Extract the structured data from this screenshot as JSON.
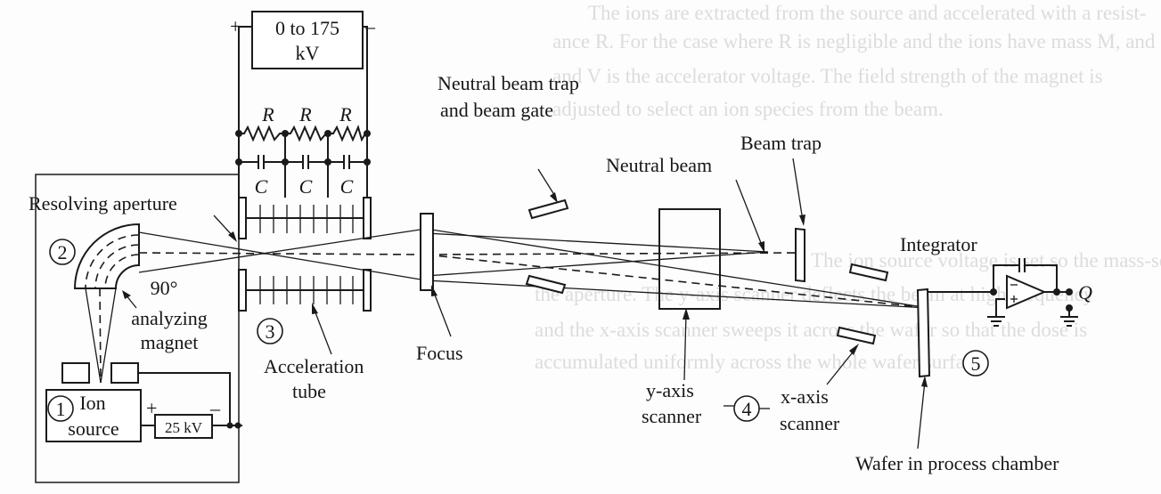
{
  "labels": {
    "supply_plus": "+",
    "supply_minus": "–",
    "supply_top": "0 to 175",
    "supply_bottom": "kV",
    "resistor": "R",
    "capacitor": "C",
    "resolving_aperture": "Resolving aperture",
    "neutral_trap_line1": "Neutral beam trap",
    "neutral_trap_line2": "and beam gate",
    "beam_trap": "Beam trap",
    "neutral_beam": "Neutral beam",
    "integrator": "Integrator",
    "q": "Q",
    "magnet_angle": "90°",
    "magnet_line1": "analyzing",
    "magnet_line2": "magnet",
    "accel_line1": "Acceleration",
    "accel_line2": "tube",
    "focus": "Focus",
    "y_scanner_line1": "y-axis",
    "y_scanner_line2": "scanner",
    "x_scanner_line1": "x-axis",
    "x_scanner_line2": "scanner",
    "wafer": "Wafer in process chamber",
    "ion_line1": "Ion",
    "ion_line2": "source",
    "ion_plus": "+",
    "ion_minus": "–",
    "ion_supply": "25 kV",
    "num1": "1",
    "num2": "2",
    "num3": "3",
    "num4": "4",
    "num5": "5"
  },
  "background_text": {
    "line1": "The ions are extracted from the source and accelerated with a resist-",
    "line2": "ance R. For the case where R is negligible and the ions have mass M, and",
    "line3": "and V is the accelerator voltage. The field strength of the magnet is",
    "line4": "adjusted to select an ion species from the beam.",
    "line5": "The ion source voltage is set so the mass-separated ions pass through",
    "line6": "the aperture. The y-axis scanner deflects the beam at high frequency",
    "line7": "and the x-axis scanner sweeps it across the wafer so that the dose is",
    "line8": "accumulated uniformly across the whole wafer surface."
  }
}
